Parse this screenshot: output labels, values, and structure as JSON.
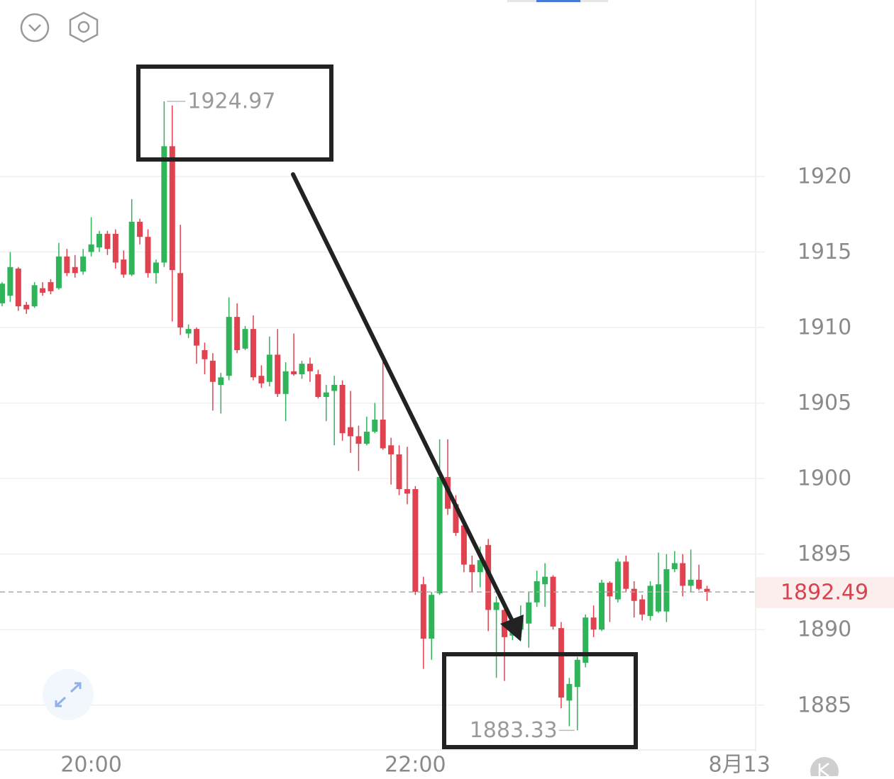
{
  "chart_data": {
    "type": "candlestick",
    "up_color": "#2fb45a",
    "down_color": "#e0434f",
    "open": [
      1911.6,
      1912.1,
      1913.9,
      1911.5,
      1911.4,
      1912.6,
      1913.0,
      1912.6,
      1914.7,
      1914.0,
      1913.7,
      1915.0,
      1915.3,
      1916.2,
      1916.2,
      1914.5,
      1913.5,
      1917.0,
      1916.0,
      1913.6,
      1914.3,
      1922.0,
      1913.6,
      1909.6,
      1909.9,
      1908.5,
      1907.8,
      1906.2,
      1906.8,
      1910.7,
      1908.6,
      1909.9,
      1906.8,
      1906.4,
      1908.2,
      1905.6,
      1907.1,
      1906.9,
      1907.6,
      1906.9,
      1905.4,
      1905.8,
      1906.2,
      1903.4,
      1902.8,
      1902.3,
      1903.1,
      1903.9,
      1902.2,
      1901.6,
      1899.3,
      1899.3,
      1893.0,
      1889.4,
      1892.4,
      1900.1,
      1898.3,
      1896.9,
      1894.3,
      1893.8,
      1895.6,
      1891.3,
      1891.3,
      1889.6,
      1890.0,
      1890.4,
      1891.8,
      1893.0,
      1893.5,
      1890.1,
      1885.3,
      1886.2,
      1887.8,
      1890.8,
      1890.0,
      1893.1,
      1892.0,
      1894.5,
      1892.7,
      1892.0,
      1890.9,
      1891.2,
      1891.2,
      1894.0,
      1894.4,
      1892.9,
      1893.3,
      1892.7
    ],
    "high": [
      1913.0,
      1915.0,
      1914.0,
      1911.7,
      1913.0,
      1913.0,
      1913.2,
      1915.6,
      1915.2,
      1914.8,
      1915.2,
      1917.3,
      1916.4,
      1916.4,
      1916.5,
      1915.1,
      1918.5,
      1917.2,
      1916.5,
      1914.5,
      1924.97,
      1924.7,
      1916.8,
      1910.2,
      1910.0,
      1909.0,
      1908.3,
      1907.0,
      1912.0,
      1911.6,
      1910.1,
      1910.8,
      1907.5,
      1909.4,
      1909.9,
      1907.7,
      1909.6,
      1907.8,
      1908.0,
      1907.2,
      1906.2,
      1906.8,
      1906.5,
      1905.8,
      1903.5,
      1904.1,
      1905.0,
      1907.8,
      1902.7,
      1902.2,
      1902.1,
      1899.5,
      1893.5,
      1892.5,
      1902.6,
      1902.6,
      1898.9,
      1897.3,
      1894.9,
      1895.5,
      1896.0,
      1892.2,
      1891.7,
      1890.7,
      1891.6,
      1892.5,
      1893.9,
      1894.4,
      1893.6,
      1890.5,
      1886.8,
      1888.2,
      1891.0,
      1891.6,
      1893.3,
      1893.2,
      1894.7,
      1894.9,
      1893.2,
      1892.3,
      1893.2,
      1895.1,
      1895.0,
      1895.2,
      1895.0,
      1895.3,
      1894.3,
      1892.9
    ],
    "low": [
      1911.4,
      1911.7,
      1911.1,
      1910.9,
      1911.3,
      1912.1,
      1912.2,
      1912.5,
      1913.4,
      1913.3,
      1913.5,
      1914.7,
      1915.0,
      1914.8,
      1913.9,
      1913.3,
      1913.4,
      1915.5,
      1913.3,
      1912.9,
      1914.0,
      1910.4,
      1909.5,
      1909.3,
      1907.6,
      1906.9,
      1904.5,
      1904.3,
      1906.5,
      1908.3,
      1908.5,
      1906.5,
      1906.0,
      1906.1,
      1905.4,
      1903.8,
      1906.8,
      1906.6,
      1906.4,
      1905.3,
      1903.8,
      1902.2,
      1902.5,
      1901.7,
      1900.5,
      1902.2,
      1903.0,
      1901.9,
      1899.6,
      1898.9,
      1898.3,
      1892.3,
      1887.4,
      1888.0,
      1892.3,
      1897.6,
      1896.2,
      1893.8,
      1892.5,
      1892.8,
      1889.9,
      1886.8,
      1886.6,
      1889.3,
      1889.3,
      1888.8,
      1891.5,
      1891.5,
      1890.0,
      1884.8,
      1883.6,
      1883.33,
      1887.5,
      1889.5,
      1889.9,
      1890.5,
      1891.8,
      1892.5,
      1890.8,
      1890.6,
      1890.6,
      1891.1,
      1890.5,
      1893.8,
      1892.2,
      1892.5,
      1892.6,
      1891.9
    ],
    "close": [
      1912.9,
      1914.0,
      1911.4,
      1911.2,
      1912.8,
      1912.3,
      1912.4,
      1914.7,
      1913.6,
      1913.6,
      1914.7,
      1915.5,
      1916.2,
      1915.2,
      1914.3,
      1913.5,
      1917.0,
      1916.0,
      1913.6,
      1914.3,
      1922.0,
      1913.8,
      1910.0,
      1909.9,
      1908.8,
      1907.9,
      1906.4,
      1906.7,
      1910.7,
      1908.5,
      1909.9,
      1906.7,
      1906.3,
      1908.2,
      1905.6,
      1907.1,
      1906.9,
      1907.6,
      1907.1,
      1905.4,
      1905.7,
      1906.2,
      1903.0,
      1902.8,
      1902.3,
      1903.1,
      1903.9,
      1902.0,
      1901.6,
      1899.3,
      1899.0,
      1892.5,
      1889.4,
      1892.3,
      1900.1,
      1898.0,
      1896.4,
      1894.3,
      1893.8,
      1894.6,
      1891.3,
      1891.8,
      1889.5,
      1889.9,
      1890.8,
      1891.8,
      1893.2,
      1893.5,
      1890.2,
      1885.5,
      1886.4,
      1888.0,
      1890.8,
      1890.0,
      1893.1,
      1892.2,
      1894.5,
      1892.7,
      1891.9,
      1891.0,
      1892.9,
      1893.0,
      1894.0,
      1894.4,
      1892.9,
      1893.3,
      1892.7,
      1892.49
    ],
    "xlim": [
      -0.26,
      93.0
    ],
    "xticks": [
      {
        "value": 11,
        "label": "20:00"
      },
      {
        "value": 51,
        "label": "22:00"
      },
      {
        "value": 91,
        "label": "8月13"
      }
    ],
    "ylim": [
      1882.08,
      1931.68
    ],
    "yticks": [
      1885,
      1890,
      1895,
      1900,
      1905,
      1910,
      1915,
      1920
    ],
    "grid": true,
    "high_marker_index": 20,
    "low_marker_index": 71
  }
}
